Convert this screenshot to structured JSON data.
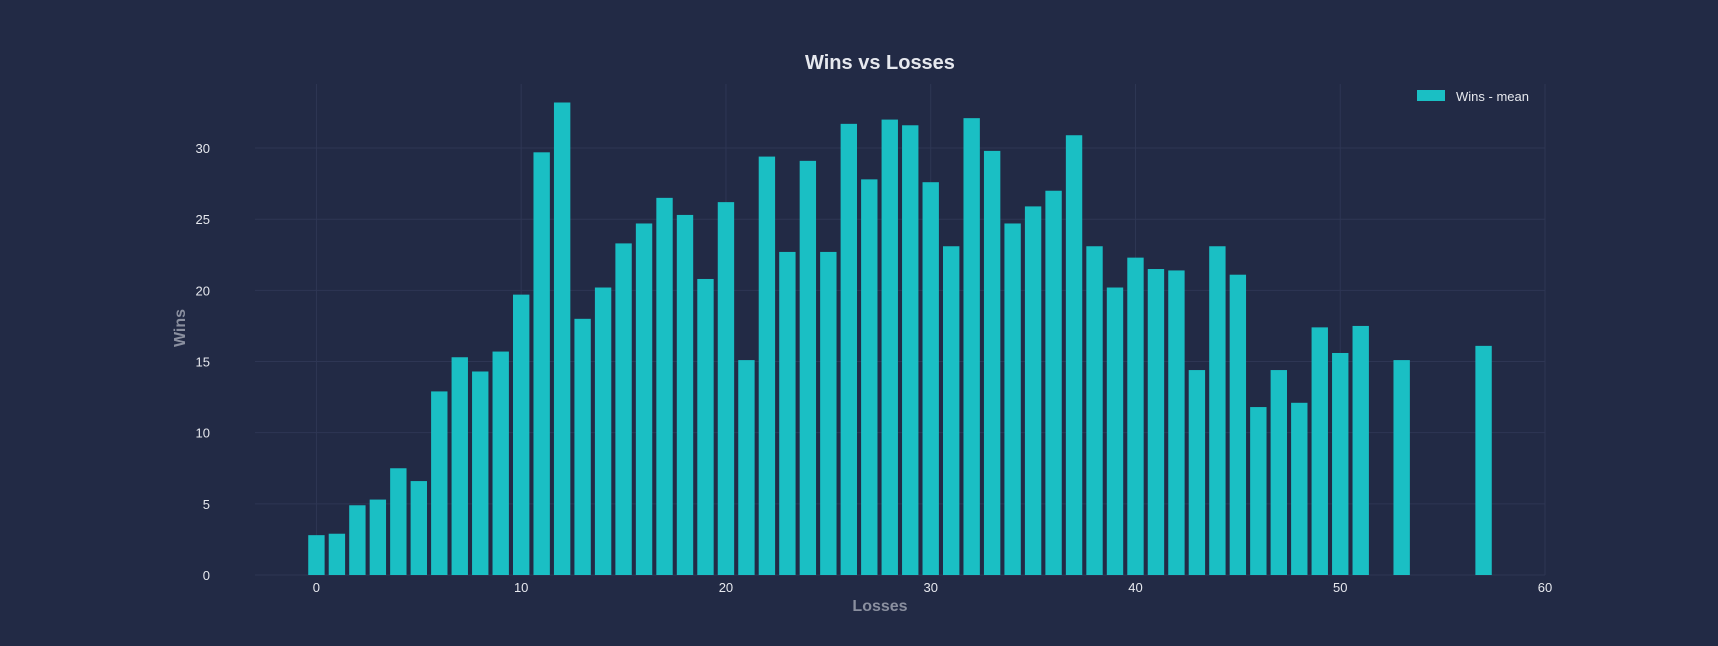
{
  "chart_data": {
    "type": "bar",
    "title": "Wins vs Losses",
    "xlabel": "Losses",
    "ylabel": "Wins",
    "xlim": [
      -3,
      60
    ],
    "ylim": [
      0,
      34.5
    ],
    "xticks": [
      0,
      10,
      20,
      30,
      40,
      50,
      60
    ],
    "yticks": [
      0,
      5,
      10,
      15,
      20,
      25,
      30
    ],
    "grid": true,
    "legend_position": "top-right",
    "bar_color": "#1abfc4",
    "background": "#222a45",
    "series": [
      {
        "name": "Wins - mean",
        "x": [
          0,
          1,
          2,
          3,
          4,
          5,
          6,
          7,
          8,
          9,
          10,
          11,
          12,
          13,
          14,
          15,
          16,
          17,
          18,
          19,
          20,
          21,
          22,
          23,
          24,
          25,
          26,
          27,
          28,
          29,
          30,
          31,
          32,
          33,
          34,
          35,
          36,
          37,
          38,
          39,
          40,
          41,
          42,
          43,
          44,
          45,
          46,
          47,
          48,
          49,
          50,
          51,
          53,
          57
        ],
        "values": [
          2.8,
          2.9,
          4.9,
          5.3,
          7.5,
          6.6,
          12.9,
          15.3,
          14.3,
          15.7,
          19.7,
          29.7,
          33.2,
          18.0,
          20.2,
          23.3,
          24.7,
          26.5,
          25.3,
          20.8,
          26.2,
          15.1,
          29.4,
          22.7,
          29.1,
          22.7,
          31.7,
          27.8,
          32.0,
          31.6,
          27.6,
          23.1,
          32.1,
          29.8,
          24.7,
          25.9,
          27.0,
          30.9,
          23.1,
          20.2,
          22.3,
          21.5,
          21.4,
          14.4,
          23.1,
          21.1,
          11.8,
          14.4,
          12.1,
          17.4,
          15.6,
          17.5,
          15.1,
          16.1
        ]
      }
    ]
  }
}
